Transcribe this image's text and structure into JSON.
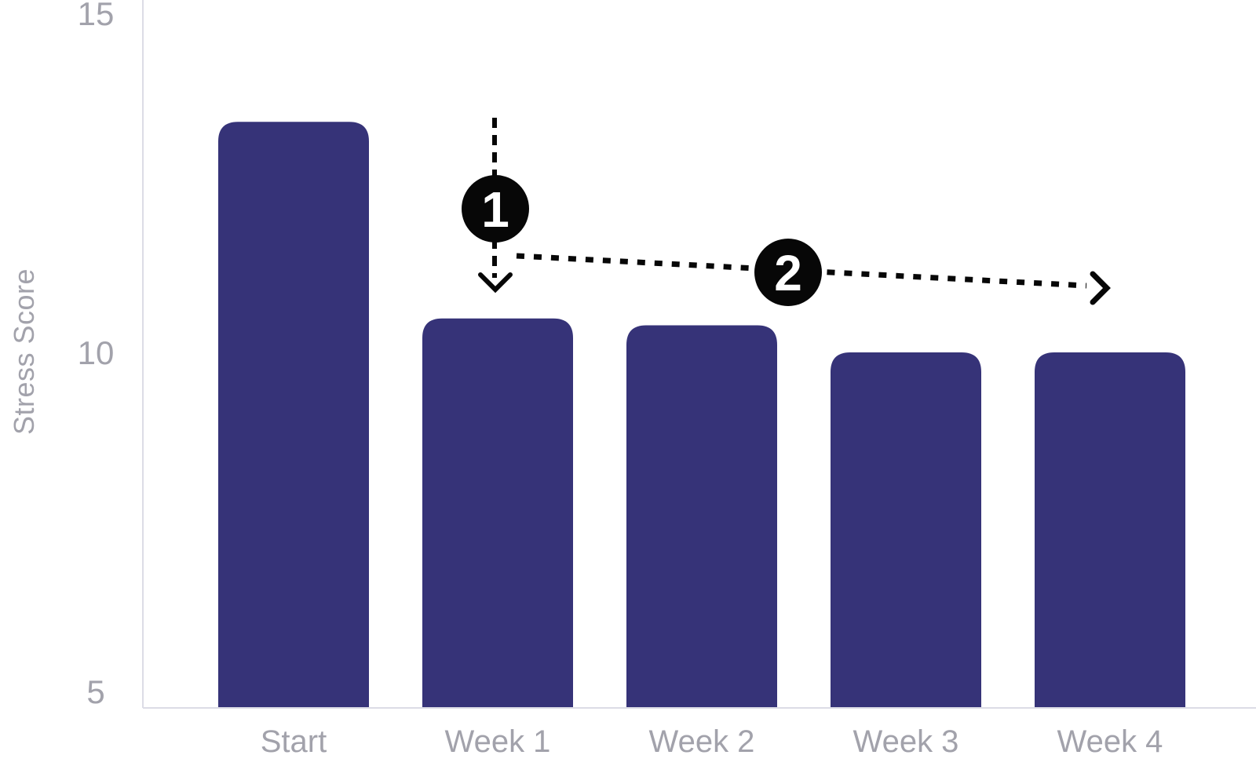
{
  "chart_data": {
    "type": "bar",
    "title": "",
    "ylabel": "Stress Score",
    "xlabel": "",
    "categories": [
      "Start",
      "Week 1",
      "Week 2",
      "Week 3",
      "Week 4"
    ],
    "values": [
      13.4,
      10.5,
      10.4,
      10.0,
      10.0
    ],
    "yticks": [
      15,
      10,
      5
    ],
    "ylim": [
      4.76,
      15.2
    ],
    "grid": false,
    "legend": false,
    "colors": {
      "bar": "#363378",
      "axis_text": "#a2a2ab",
      "axis_line": "#dcdce6",
      "annotation": "#070707",
      "annotation_text": "#ffffff"
    },
    "annotations": [
      {
        "label": "1",
        "shape": "circle-badge",
        "arrow": "dashed-down",
        "points_to": "Week 1"
      },
      {
        "label": "2",
        "shape": "circle-badge",
        "arrow": "dashed-right",
        "spans": "Week 1 to Week 4"
      }
    ]
  }
}
